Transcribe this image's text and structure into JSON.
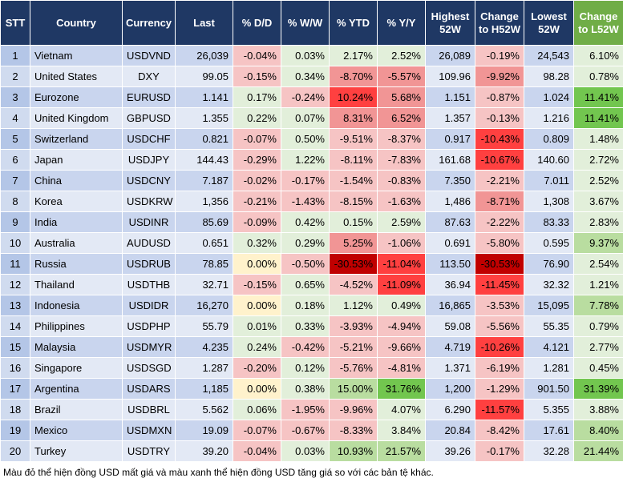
{
  "table": {
    "header": [
      "STT",
      "Country",
      "Currency",
      "Last",
      "% D/D",
      "% W/W",
      "% YTD",
      "% Y/Y",
      "Highest 52W",
      "Change to H52W",
      "Lowest 52W",
      "Change to L52W"
    ],
    "rows": [
      [
        "1",
        "Vietnam",
        "USDVND",
        "26,039",
        "-0.04%",
        "0.03%",
        "2.17%",
        "2.52%",
        "26,089",
        "-0.19%",
        "24,543",
        "6.10%"
      ],
      [
        "2",
        "United States",
        "DXY",
        "99.05",
        "-0.15%",
        "0.34%",
        "-8.70%",
        "-5.57%",
        "109.96",
        "-9.92%",
        "98.28",
        "0.78%"
      ],
      [
        "3",
        "Eurozone",
        "EURUSD",
        "1.141",
        "0.17%",
        "-0.24%",
        "10.24%",
        "5.68%",
        "1.151",
        "-0.87%",
        "1.024",
        "11.41%"
      ],
      [
        "4",
        "United Kingdom",
        "GBPUSD",
        "1.355",
        "0.22%",
        "0.07%",
        "8.31%",
        "6.52%",
        "1.357",
        "-0.13%",
        "1.216",
        "11.41%"
      ],
      [
        "5",
        "Switzerland",
        "USDCHF",
        "0.821",
        "-0.07%",
        "0.50%",
        "-9.51%",
        "-8.37%",
        "0.917",
        "-10.43%",
        "0.809",
        "1.48%"
      ],
      [
        "6",
        "Japan",
        "USDJPY",
        "144.43",
        "-0.29%",
        "1.22%",
        "-8.11%",
        "-7.83%",
        "161.68",
        "-10.67%",
        "140.60",
        "2.72%"
      ],
      [
        "7",
        "China",
        "USDCNY",
        "7.187",
        "-0.02%",
        "-0.17%",
        "-1.54%",
        "-0.83%",
        "7.350",
        "-2.21%",
        "7.011",
        "2.52%"
      ],
      [
        "8",
        "Korea",
        "USDKRW",
        "1,356",
        "-0.21%",
        "-1.43%",
        "-8.15%",
        "-1.63%",
        "1,486",
        "-8.71%",
        "1,308",
        "3.67%"
      ],
      [
        "9",
        "India",
        "USDINR",
        "85.69",
        "-0.09%",
        "0.42%",
        "0.15%",
        "2.59%",
        "87.63",
        "-2.22%",
        "83.33",
        "2.83%"
      ],
      [
        "10",
        "Australia",
        "AUDUSD",
        "0.651",
        "0.32%",
        "0.29%",
        "5.25%",
        "-1.06%",
        "0.691",
        "-5.80%",
        "0.595",
        "9.37%"
      ],
      [
        "11",
        "Russia",
        "USDRUB",
        "78.85",
        "0.00%",
        "-0.50%",
        "-30.53%",
        "-11.04%",
        "113.50",
        "-30.53%",
        "76.90",
        "2.54%"
      ],
      [
        "12",
        "Thailand",
        "USDTHB",
        "32.71",
        "-0.15%",
        "0.65%",
        "-4.52%",
        "-11.09%",
        "36.94",
        "-11.45%",
        "32.32",
        "1.21%"
      ],
      [
        "13",
        "Indonesia",
        "USDIDR",
        "16,270",
        "0.00%",
        "0.18%",
        "1.12%",
        "0.49%",
        "16,865",
        "-3.53%",
        "15,095",
        "7.78%"
      ],
      [
        "14",
        "Philippines",
        "USDPHP",
        "55.79",
        "0.01%",
        "0.33%",
        "-3.93%",
        "-4.94%",
        "59.08",
        "-5.56%",
        "55.35",
        "0.79%"
      ],
      [
        "15",
        "Malaysia",
        "USDMYR",
        "4.235",
        "0.24%",
        "-0.42%",
        "-5.21%",
        "-9.66%",
        "4.719",
        "-10.26%",
        "4.121",
        "2.77%"
      ],
      [
        "16",
        "Singapore",
        "USDSGD",
        "1.287",
        "-0.20%",
        "0.12%",
        "-5.76%",
        "-4.81%",
        "1.371",
        "-6.19%",
        "1.281",
        "0.45%"
      ],
      [
        "17",
        "Argentina",
        "USDARS",
        "1,185",
        "0.00%",
        "0.38%",
        "15.00%",
        "31.76%",
        "1,200",
        "-1.29%",
        "901.50",
        "31.39%"
      ],
      [
        "18",
        "Brazil",
        "USDBRL",
        "5.562",
        "0.06%",
        "-1.95%",
        "-9.96%",
        "4.07%",
        "6.290",
        "-11.57%",
        "5.355",
        "3.88%"
      ],
      [
        "19",
        "Mexico",
        "USDMXN",
        "19.09",
        "-0.07%",
        "-0.67%",
        "-8.33%",
        "3.84%",
        "20.84",
        "-8.42%",
        "17.61",
        "8.40%"
      ],
      [
        "20",
        "Turkey",
        "USDTRY",
        "39.20",
        "-0.04%",
        "0.03%",
        "10.93%",
        "21.57%",
        "39.26",
        "-0.17%",
        "32.28",
        "21.44%"
      ]
    ],
    "note": "Màu đỏ thể hiện đồng USD mất giá và màu xanh thể hiện đồng USD tăng giá so với các bản tệ khác."
  }
}
